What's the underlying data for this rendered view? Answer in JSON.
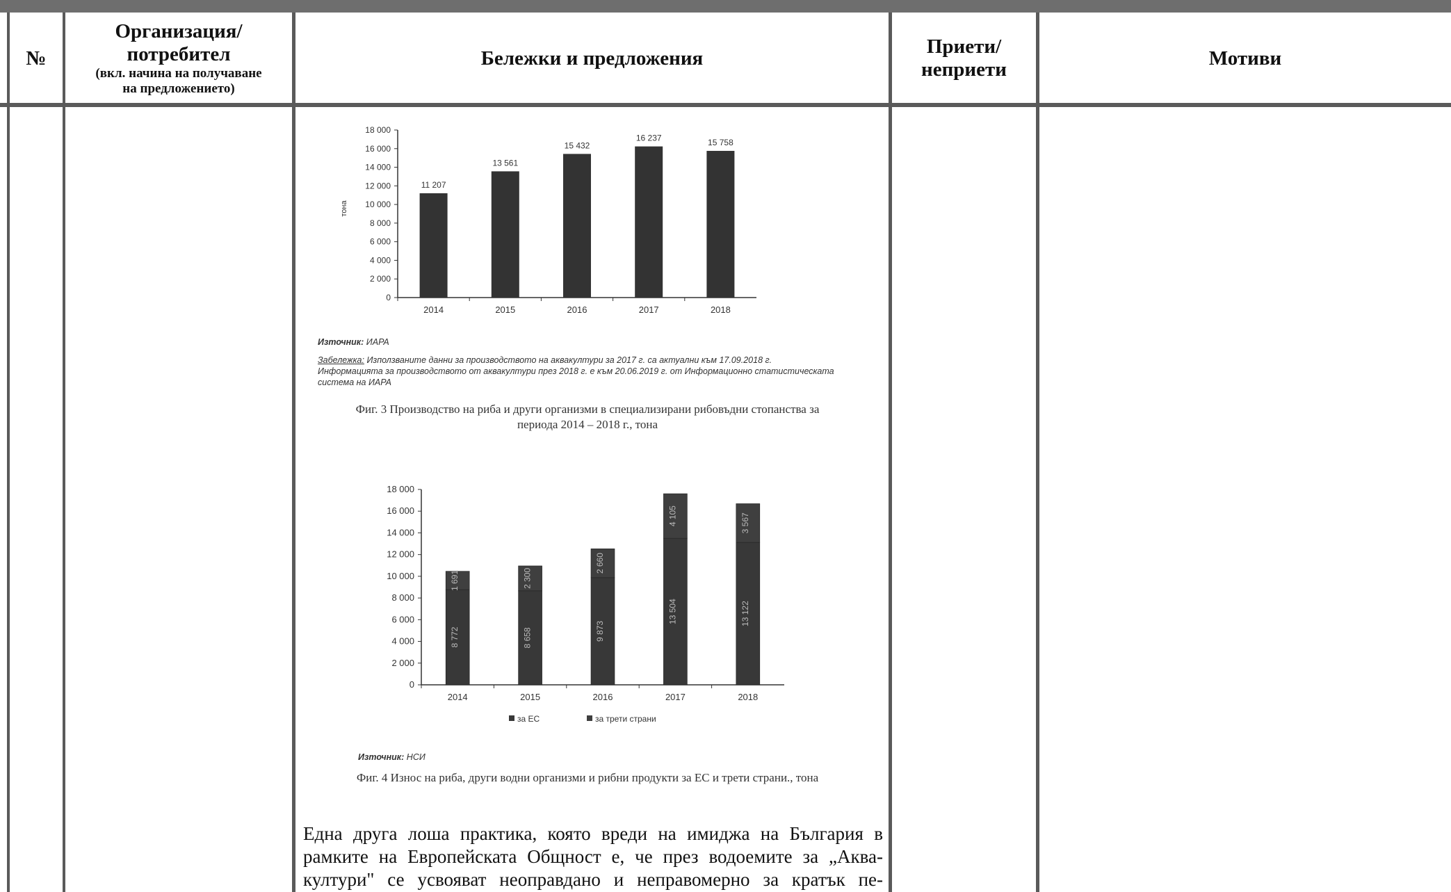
{
  "header": {
    "col_no": "№",
    "col_org_line1": "Организация/",
    "col_org_line2": "потребител",
    "col_org_sub1": "(вкл. начина на получаване",
    "col_org_sub2": "на предложението)",
    "col_notes": "Бележки и предложения",
    "col_accepted_line1": "Приети/",
    "col_accepted_line2": "неприети",
    "col_motives": "Мотиви"
  },
  "figure3": {
    "ylabel": "тона",
    "source_label": "Източник:",
    "source_value": "ИАРА",
    "note_label": "Забележка:",
    "note_line1": "Използваните данни за производството на аквакултури за 2017 г. са актуални към 17.09.2018 г.",
    "note_line2": "Информацията за производството от аквакултури през 2018 г. е към 20.06.2019 г. от Информационно статистическата",
    "note_line3": "система на ИАРА",
    "caption_line1": "Фиг. 3 Производство на риба и други организми в специализирани рибовъдни стопанства за",
    "caption_line2": "периода 2014 – 2018 г., тона"
  },
  "figure4": {
    "source_label": "Източник:",
    "source_value": "НСИ",
    "caption": "Фиг. 4 Износ на риба, други водни организми и рибни продукти за ЕС и трети страни., тона"
  },
  "body_text": {
    "line1": "Една друга лоша практика, която вреди на имиджа на България в",
    "line2": "рамките на Европейската Общност е, че през водоемите за „Аква-",
    "line3": "култури\" се усвояват неоправдано и неправомерно за кратък пе-"
  },
  "chart_data": [
    {
      "type": "bar",
      "categories": [
        "2014",
        "2015",
        "2016",
        "2017",
        "2018"
      ],
      "values": [
        11207,
        13561,
        15432,
        16237,
        15758
      ],
      "value_labels": [
        "11 207",
        "13 561",
        "15 432",
        "16 237",
        "15 758"
      ],
      "ylabel": "тона",
      "ylim": [
        0,
        18000
      ],
      "yticks": [
        "0",
        "2 000",
        "4 000",
        "6 000",
        "8 000",
        "10 000",
        "12 000",
        "14 000",
        "16 000",
        "18 000"
      ],
      "bar_color": "#333333"
    },
    {
      "type": "bar",
      "stacked": true,
      "categories": [
        "2014",
        "2015",
        "2016",
        "2017",
        "2018"
      ],
      "series": [
        {
          "name": "за ЕС",
          "values": [
            8772,
            8658,
            9873,
            13504,
            13122
          ],
          "labels": [
            "8 772",
            "8 658",
            "9 873",
            "13 504",
            "13 122"
          ]
        },
        {
          "name": "за трети страни",
          "values": [
            1691,
            2300,
            2660,
            4105,
            3567
          ],
          "labels": [
            "1 691",
            "2 300",
            "2 660",
            "4 105",
            "3 567"
          ]
        }
      ],
      "ylim": [
        0,
        18000
      ],
      "yticks": [
        "0",
        "2 000",
        "4 000",
        "6 000",
        "8 000",
        "10 000",
        "12 000",
        "14 000",
        "16 000",
        "18 000"
      ],
      "legend_position": "bottom",
      "colors": [
        "#383838",
        "#3f3f3f"
      ]
    }
  ]
}
